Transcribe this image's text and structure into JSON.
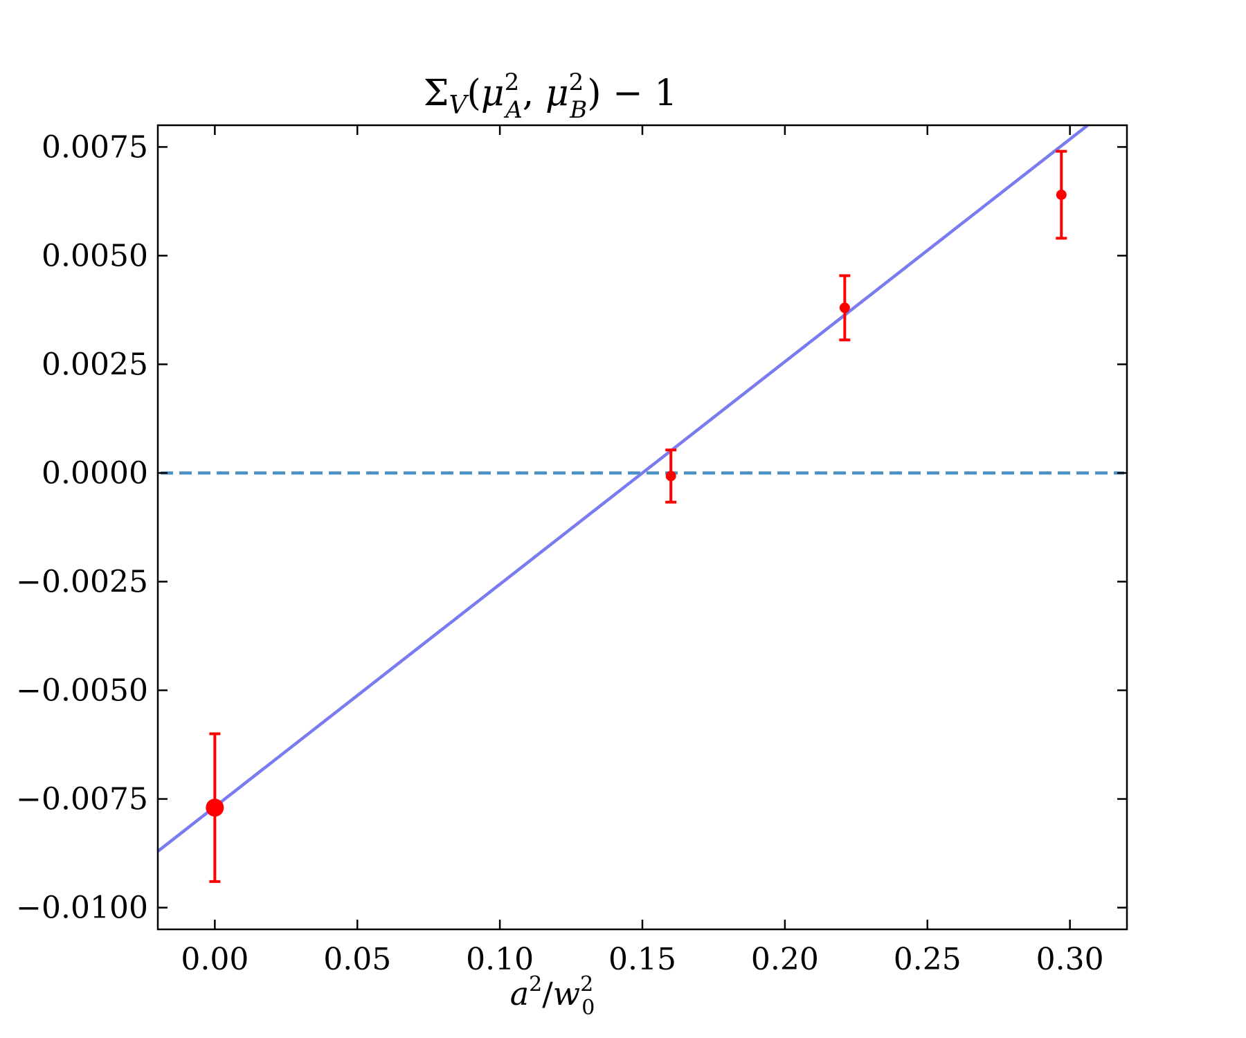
{
  "chart_data": {
    "type": "scatter",
    "title": "Σ_V(μ_A², μ_B²) − 1",
    "title_parts": {
      "sigma": "Σ",
      "sigma_sub": "V",
      "open": "(",
      "mu": "μ",
      "sq": "2",
      "subA": "A",
      "comma": ", ",
      "subB": "B",
      "close": ") − 1"
    },
    "xlabel": "a²/w₀²",
    "xlabel_parts": {
      "a": "a",
      "a_sup": "2",
      "slash": "/",
      "w": "w",
      "w_sup": "2",
      "w_sub": "0"
    },
    "ylabel": "",
    "xlim": [
      -0.02,
      0.32
    ],
    "ylim": [
      -0.0105,
      0.008
    ],
    "x_ticks": [
      0.0,
      0.05,
      0.1,
      0.15,
      0.2,
      0.25,
      0.3
    ],
    "x_tick_labels": [
      "0.00",
      "0.05",
      "0.10",
      "0.15",
      "0.20",
      "0.25",
      "0.30"
    ],
    "y_ticks": [
      -0.01,
      -0.0075,
      -0.005,
      -0.0025,
      0.0,
      0.0025,
      0.005,
      0.0075
    ],
    "y_tick_labels": [
      "−0.0100",
      "−0.0075",
      "−0.0050",
      "−0.0025",
      "0.0000",
      "0.0025",
      "0.0050",
      "0.0075"
    ],
    "grid": false,
    "points": [
      {
        "x": 0.16,
        "y": -7e-05,
        "err": 0.0006
      },
      {
        "x": 0.221,
        "y": 0.0038,
        "err": 0.00074
      },
      {
        "x": 0.297,
        "y": 0.0064,
        "err": 0.001
      }
    ],
    "extrapolated_point": {
      "x": 0.0,
      "y": -0.0077,
      "err": 0.0017
    },
    "fit_line": {
      "slope": 0.0512,
      "intercept": -0.00768,
      "color": "#7b7bf0"
    },
    "reference_line": {
      "y": 0.0,
      "style": "dashed",
      "color": "#4a90c4"
    },
    "point_color": "#ff0000"
  }
}
